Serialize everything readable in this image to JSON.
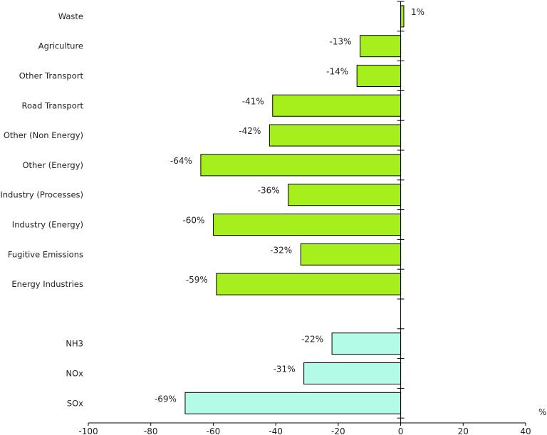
{
  "chart_data": {
    "type": "bar",
    "orientation": "horizontal",
    "title": "",
    "xlabel": "",
    "ylabel": "",
    "unit": "%",
    "xlim": [
      -100,
      40
    ],
    "xticks": [
      -100,
      -80,
      -60,
      -40,
      -20,
      0,
      20,
      40
    ],
    "grid": false,
    "legend": "none",
    "categories": [
      "Waste",
      "Agriculture",
      "Other Transport",
      "Road Transport",
      "Other (Non Energy)",
      "Other (Energy)",
      "Industry (Processes)",
      "Industry (Energy)",
      "Fugitive Emissions",
      "Energy Industries",
      "",
      "NH3",
      "NOx",
      "SOx"
    ],
    "values": [
      1,
      -13,
      -14,
      -41,
      -42,
      -64,
      -36,
      -60,
      -32,
      -59,
      null,
      -22,
      -31,
      -69
    ],
    "value_labels": [
      "1%",
      "-13%",
      "-14%",
      "-41%",
      "-42%",
      "-64%",
      "-36%",
      "-60%",
      "-32%",
      "-59%",
      "",
      "-22%",
      "-31%",
      "-69%"
    ],
    "bar_colors": [
      "#a6ee1c",
      "#a6ee1c",
      "#a6ee1c",
      "#a6ee1c",
      "#a6ee1c",
      "#a6ee1c",
      "#a6ee1c",
      "#a6ee1c",
      "#a6ee1c",
      "#a6ee1c",
      "",
      "#b3fbe6",
      "#b3fbe6",
      "#b3fbe6"
    ]
  },
  "colors": {
    "sector_bar": "#a6ee1c",
    "pollutant_bar": "#b3fbe6",
    "outline": "#000000",
    "text": "#222222"
  }
}
